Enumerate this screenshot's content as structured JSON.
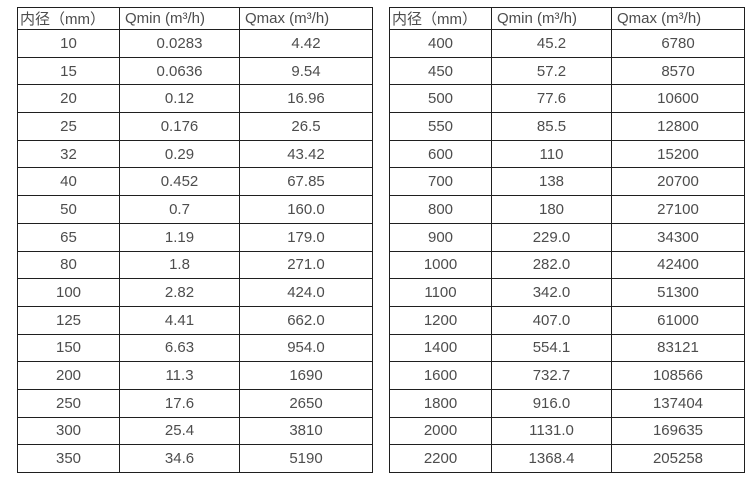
{
  "page": {
    "background_color": "#ffffff",
    "text_color": "#4d4d4d",
    "border_color": "#1f1f1f"
  },
  "tables": [
    {
      "title": "small-diameter-flow-ranges",
      "headers": [
        "内径（mm）",
        "Qmin (m³/h)",
        "Qmax (m³/h)"
      ],
      "rows": [
        [
          "10",
          "0.0283",
          "4.42"
        ],
        [
          "15",
          "0.0636",
          "9.54"
        ],
        [
          "20",
          "0.12",
          "16.96"
        ],
        [
          "25",
          "0.176",
          "26.5"
        ],
        [
          "32",
          "0.29",
          "43.42"
        ],
        [
          "40",
          "0.452",
          "67.85"
        ],
        [
          "50",
          "0.7",
          "160.0"
        ],
        [
          "65",
          "1.19",
          "179.0"
        ],
        [
          "80",
          "1.8",
          "271.0"
        ],
        [
          "100",
          "2.82",
          "424.0"
        ],
        [
          "125",
          "4.41",
          "662.0"
        ],
        [
          "150",
          "6.63",
          "954.0"
        ],
        [
          "200",
          "11.3",
          "1690"
        ],
        [
          "250",
          "17.6",
          "2650"
        ],
        [
          "300",
          "25.4",
          "3810"
        ],
        [
          "350",
          "34.6",
          "5190"
        ]
      ]
    },
    {
      "title": "large-diameter-flow-ranges",
      "headers": [
        "内径（mm）",
        "Qmin (m³/h)",
        "Qmax (m³/h)"
      ],
      "rows": [
        [
          "400",
          "45.2",
          "6780"
        ],
        [
          "450",
          "57.2",
          "8570"
        ],
        [
          "500",
          "77.6",
          "10600"
        ],
        [
          "550",
          "85.5",
          "12800"
        ],
        [
          "600",
          "110",
          "15200"
        ],
        [
          "700",
          "138",
          "20700"
        ],
        [
          "800",
          "180",
          "27100"
        ],
        [
          "900",
          "229.0",
          "34300"
        ],
        [
          "1000",
          "282.0",
          "42400"
        ],
        [
          "1100",
          "342.0",
          "51300"
        ],
        [
          "1200",
          "407.0",
          "61000"
        ],
        [
          "1400",
          "554.1",
          "83121"
        ],
        [
          "1600",
          "732.7",
          "108566"
        ],
        [
          "1800",
          "916.0",
          "137404"
        ],
        [
          "2000",
          "1131.0",
          "169635"
        ],
        [
          "2200",
          "1368.4",
          "205258"
        ]
      ]
    }
  ]
}
